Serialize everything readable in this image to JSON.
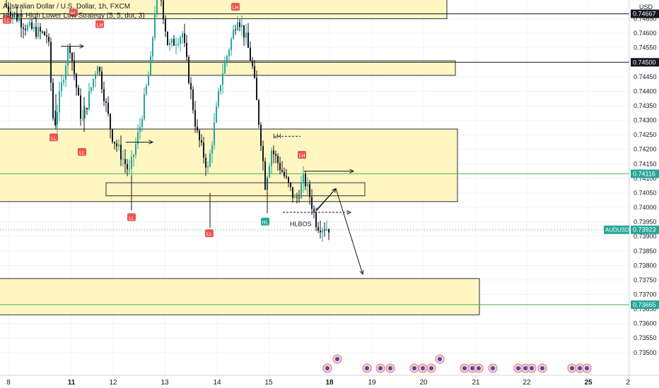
{
  "header": {
    "title": "Australian Dollar / U.S. Dollar, 1h, FXCM",
    "indicator": "Higher High Lower Low Strategy (5, 5, dot, 3)"
  },
  "currency": "USD",
  "colors": {
    "zone_fill": "#fff6c2",
    "zone_border": "#2a2e39",
    "up": "#26a69a",
    "down": "#131722",
    "label_red": "#ef5350",
    "label_green": "#26a69a",
    "hline_green": "#4caf50",
    "hline_black": "#131722",
    "grid": "#f0f3fa"
  },
  "chart_data": {
    "type": "candlestick",
    "symbol": "AUDUSD",
    "ylim": [
      0.7348,
      0.747
    ],
    "y_ticks": [
      0.7465,
      0.746,
      0.7455,
      0.745,
      0.7445,
      0.744,
      0.7435,
      0.743,
      0.7425,
      0.742,
      0.7415,
      0.741,
      0.7405,
      0.74,
      0.7395,
      0.739,
      0.7385,
      0.738,
      0.7375,
      0.737,
      0.7365,
      0.736,
      0.7355,
      0.735
    ],
    "y_tick_labels": [
      "0.74650",
      "0.74600",
      "0.74550",
      "0.74500",
      "0.74450",
      "0.74400",
      "0.74350",
      "0.74300",
      "0.74250",
      "0.74200",
      "0.74150",
      "0.74100",
      "0.74050",
      "0.74000",
      "0.73950",
      "0.73900",
      "0.73850",
      "0.73800",
      "0.73750",
      "0.73700",
      "0.73650",
      "0.73600",
      "0.73550",
      "0.73500"
    ],
    "x_ticks": [
      {
        "label": "8",
        "bold": false
      },
      {
        "label": "11",
        "bold": true
      },
      {
        "label": "12",
        "bold": false
      },
      {
        "label": "13",
        "bold": false
      },
      {
        "label": "14",
        "bold": false
      },
      {
        "label": "15",
        "bold": false
      },
      {
        "label": "18",
        "bold": true
      },
      {
        "label": "19",
        "bold": false
      },
      {
        "label": "20",
        "bold": false
      },
      {
        "label": "21",
        "bold": false
      },
      {
        "label": "22",
        "bold": false
      },
      {
        "label": "25",
        "bold": true
      },
      {
        "label": "2",
        "bold": false
      }
    ],
    "price_badges": [
      {
        "label": "",
        "price": "0.74667",
        "value": 0.74667,
        "style": "black"
      },
      {
        "label": "",
        "price": "0.74500",
        "value": 0.745,
        "style": "black"
      },
      {
        "label": "",
        "price": "0.74116",
        "value": 0.74116,
        "style": "green"
      },
      {
        "label": "AUDUSD",
        "price": "0.73923",
        "value": 0.73923,
        "style": "green"
      },
      {
        "label": "",
        "price": "0.73665",
        "value": 0.73665,
        "style": "green"
      }
    ],
    "zones": [
      {
        "top": 0.7475,
        "bottom": 0.7465
      },
      {
        "top": 0.74505,
        "bottom": 0.74455
      },
      {
        "top": 0.7427,
        "bottom": 0.7402
      },
      {
        "top": 0.74085,
        "bottom": 0.7404
      },
      {
        "top": 0.73755,
        "bottom": 0.7363
      }
    ],
    "hlines": [
      {
        "value": 0.74667,
        "style": "black"
      },
      {
        "value": 0.745,
        "style": "black"
      },
      {
        "value": 0.74116,
        "style": "green"
      },
      {
        "value": 0.73665,
        "style": "green"
      }
    ],
    "swing_labels": [
      {
        "text": "LL",
        "x": "Jul 8",
        "value": 0.74645,
        "color": "red"
      },
      {
        "text": "LL",
        "x": "Jul 9",
        "value": 0.7424,
        "color": "red"
      },
      {
        "text": "HL",
        "x": "Jul 9",
        "value": 0.7467,
        "color": "red"
      },
      {
        "text": "LH",
        "x": "Jul 10",
        "value": 0.7463,
        "color": "red"
      },
      {
        "text": "LL",
        "x": "Jul 10",
        "value": 0.7419,
        "color": "red"
      },
      {
        "text": "LL",
        "x": "Jul 11",
        "value": 0.73965,
        "color": "red"
      },
      {
        "text": "LL",
        "x": "Jul 13",
        "value": 0.7391,
        "color": "red"
      },
      {
        "text": "LH",
        "x": "Jul 14",
        "value": 0.7469,
        "color": "red"
      },
      {
        "text": "LH",
        "x": "Jul 16",
        "value": 0.7418,
        "color": "red"
      },
      {
        "text": "HL",
        "x": "Jul 15",
        "value": 0.7395,
        "color": "green"
      }
    ],
    "annotations": [
      {
        "text": "LH",
        "value": 0.74245
      },
      {
        "text": "HLBOS",
        "value": 0.73965
      }
    ],
    "projection": [
      0.7399,
      0.74065,
      0.7377
    ],
    "events_count": 20
  }
}
